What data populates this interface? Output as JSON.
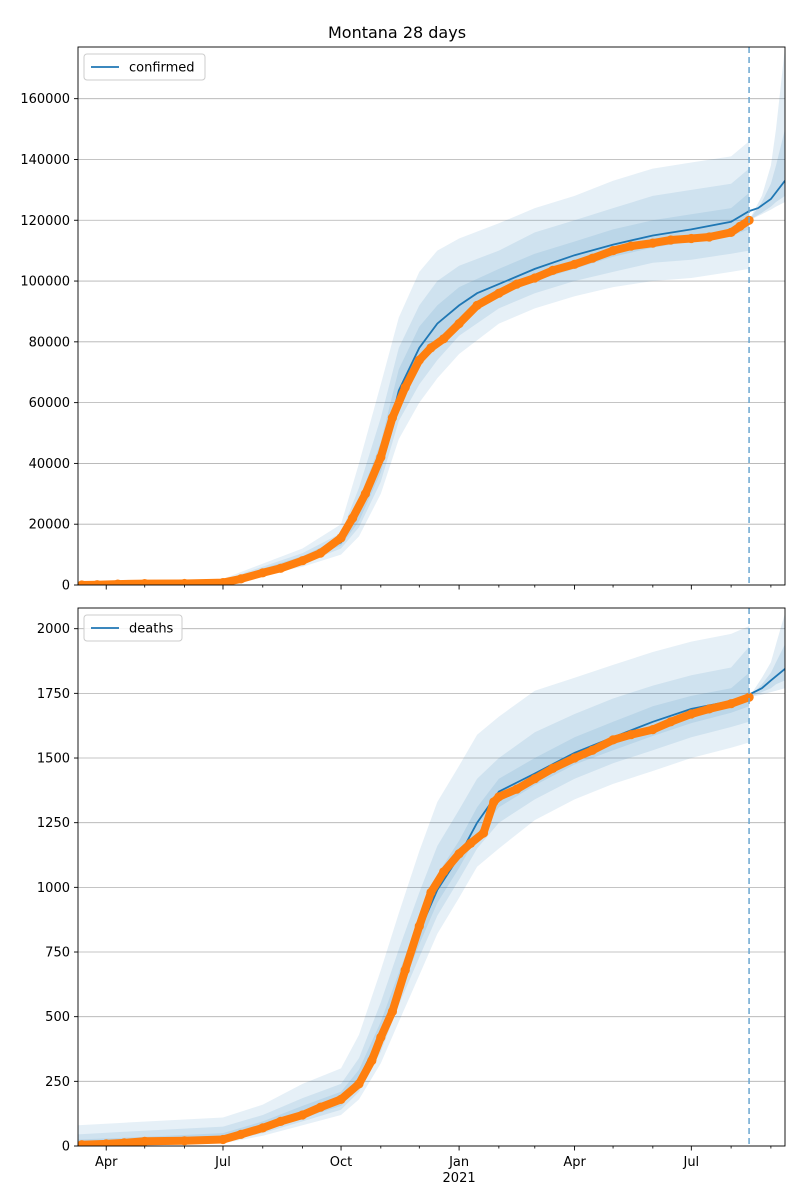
{
  "figure": {
    "title": "Montana 28 days"
  },
  "colors": {
    "model": "#1f77b4",
    "observed": "#ff7f0e",
    "grid": "#b0b0b0",
    "cutoff": "#6aa6d0"
  },
  "x_ticks": {
    "major": [
      {
        "date": "2020-04-01",
        "label": "Apr"
      },
      {
        "date": "2020-07-01",
        "label": "Jul"
      },
      {
        "date": "2020-10-01",
        "label": "Oct"
      },
      {
        "date": "2021-01-01",
        "label": "Jan"
      },
      {
        "date": "2021-04-01",
        "label": "Apr"
      },
      {
        "date": "2021-07-01",
        "label": "Jul"
      }
    ],
    "year_label": {
      "date": "2021-01-01",
      "label": "2021"
    },
    "minor": [
      "2020-03-01",
      "2020-05-01",
      "2020-06-01",
      "2020-08-01",
      "2020-09-01",
      "2020-11-01",
      "2020-12-01",
      "2021-02-01",
      "2021-03-01",
      "2021-05-01",
      "2021-06-01",
      "2021-08-01",
      "2021-09-01"
    ]
  },
  "chart_data": [
    {
      "type": "line",
      "legend": "confirmed",
      "legend_position": "top-left",
      "grid": "horizontal",
      "xlim": [
        "2020-03-10",
        "2021-09-12"
      ],
      "ylim": [
        0,
        177000
      ],
      "y_ticks": [
        0,
        20000,
        40000,
        60000,
        80000,
        100000,
        120000,
        140000,
        160000
      ],
      "forecast_start": "2021-08-15",
      "model": {
        "name": "confirmed",
        "x": [
          "2020-03-10",
          "2020-05-01",
          "2020-07-01",
          "2020-08-01",
          "2020-09-01",
          "2020-10-01",
          "2020-10-15",
          "2020-11-01",
          "2020-11-15",
          "2020-12-01",
          "2020-12-15",
          "2021-01-01",
          "2021-01-15",
          "2021-02-01",
          "2021-03-01",
          "2021-04-01",
          "2021-05-01",
          "2021-06-01",
          "2021-07-01",
          "2021-08-01",
          "2021-08-15",
          "2021-08-22",
          "2021-09-01",
          "2021-09-12"
        ],
        "y": [
          0,
          300,
          1000,
          4000,
          8500,
          14000,
          24000,
          40000,
          64000,
          78000,
          86000,
          92000,
          96000,
          99000,
          104000,
          108500,
          112000,
          115000,
          117000,
          119500,
          123000,
          124000,
          127000,
          133000
        ]
      },
      "bands": [
        {
          "x": [
            "2020-03-10",
            "2020-07-01",
            "2020-09-01",
            "2020-10-01",
            "2020-10-15",
            "2020-11-01",
            "2020-11-15",
            "2020-12-01",
            "2020-12-15",
            "2021-01-01",
            "2021-02-01",
            "2021-03-01",
            "2021-04-01",
            "2021-05-01",
            "2021-06-01",
            "2021-07-01",
            "2021-08-01",
            "2021-08-15"
          ],
          "lower": [
            0,
            500,
            6000,
            10000,
            16000,
            30000,
            48000,
            60000,
            68000,
            76000,
            86000,
            91000,
            95000,
            98000,
            100000,
            101000,
            103000,
            104000
          ],
          "upper": [
            0,
            2000,
            12000,
            20000,
            40000,
            66000,
            88000,
            103000,
            110000,
            114000,
            119000,
            124000,
            128000,
            133000,
            137000,
            139000,
            141000,
            146000
          ]
        },
        {
          "x": [
            "2020-03-10",
            "2020-07-01",
            "2020-09-01",
            "2020-10-01",
            "2020-10-15",
            "2020-11-01",
            "2020-11-15",
            "2020-12-01",
            "2020-12-15",
            "2021-01-01",
            "2021-02-01",
            "2021-03-01",
            "2021-04-01",
            "2021-05-01",
            "2021-06-01",
            "2021-07-01",
            "2021-08-01",
            "2021-08-15"
          ],
          "lower": [
            0,
            700,
            7000,
            12000,
            19000,
            34000,
            54000,
            66000,
            74000,
            82000,
            91000,
            96000,
            100000,
            103000,
            106000,
            107000,
            109000,
            110000
          ],
          "upper": [
            0,
            1600,
            10500,
            17000,
            32000,
            55000,
            78000,
            92000,
            100000,
            105000,
            110000,
            116000,
            120000,
            124000,
            128000,
            130000,
            132000,
            137000
          ]
        },
        {
          "x": [
            "2020-03-10",
            "2020-07-01",
            "2020-09-01",
            "2020-10-01",
            "2020-10-15",
            "2020-11-01",
            "2020-11-15",
            "2020-12-01",
            "2020-12-15",
            "2021-01-01",
            "2021-02-01",
            "2021-03-01",
            "2021-04-01",
            "2021-05-01",
            "2021-06-01",
            "2021-07-01",
            "2021-08-01",
            "2021-08-15"
          ],
          "lower": [
            0,
            850,
            8000,
            13000,
            21000,
            37000,
            58000,
            72000,
            80000,
            87000,
            95000,
            100000,
            104000,
            108000,
            111000,
            113000,
            115000,
            117000
          ],
          "upper": [
            0,
            1300,
            9500,
            15500,
            28000,
            47000,
            71000,
            85000,
            92000,
            98000,
            104000,
            109000,
            113000,
            117000,
            120000,
            122000,
            124000,
            129000
          ]
        }
      ],
      "forecast_bands": [
        {
          "x": [
            "2021-08-15",
            "2021-08-25",
            "2021-09-01",
            "2021-09-05",
            "2021-09-12"
          ],
          "lower": [
            120000,
            122000,
            123500,
            124500,
            126000
          ],
          "upper": [
            120000,
            128000,
            138000,
            150000,
            177000
          ]
        },
        {
          "x": [
            "2021-08-15",
            "2021-08-25",
            "2021-09-01",
            "2021-09-05",
            "2021-09-12"
          ],
          "lower": [
            120000,
            122500,
            124500,
            126000,
            128000
          ],
          "upper": [
            120000,
            126000,
            132000,
            138000,
            150000
          ]
        }
      ],
      "observed": {
        "name": "confirmed",
        "x": [
          "2020-03-13",
          "2020-03-25",
          "2020-04-10",
          "2020-05-01",
          "2020-06-01",
          "2020-07-01",
          "2020-07-15",
          "2020-08-01",
          "2020-08-15",
          "2020-09-01",
          "2020-09-15",
          "2020-10-01",
          "2020-10-10",
          "2020-10-20",
          "2020-11-01",
          "2020-11-10",
          "2020-11-20",
          "2020-12-01",
          "2020-12-10",
          "2020-12-20",
          "2021-01-01",
          "2021-01-15",
          "2021-02-01",
          "2021-02-15",
          "2021-03-01",
          "2021-03-15",
          "2021-04-01",
          "2021-04-15",
          "2021-05-01",
          "2021-05-15",
          "2021-06-01",
          "2021-06-15",
          "2021-07-01",
          "2021-07-15",
          "2021-08-01",
          "2021-08-08",
          "2021-08-15"
        ],
        "y": [
          0,
          100,
          300,
          450,
          500,
          800,
          2000,
          4000,
          5500,
          8000,
          10500,
          15500,
          22000,
          30000,
          42000,
          55000,
          65000,
          74000,
          78000,
          81000,
          86000,
          92000,
          96000,
          99000,
          101000,
          103500,
          105500,
          107500,
          110000,
          111500,
          112500,
          113500,
          114000,
          114500,
          116000,
          118000,
          120000
        ]
      }
    },
    {
      "type": "line",
      "legend": "deaths",
      "legend_position": "top-left",
      "grid": "horizontal",
      "xlim": [
        "2020-03-10",
        "2021-09-12"
      ],
      "ylim": [
        0,
        2080
      ],
      "y_ticks": [
        0,
        250,
        500,
        750,
        1000,
        1250,
        1500,
        1750,
        2000
      ],
      "forecast_start": "2021-08-15",
      "model": {
        "name": "deaths",
        "x": [
          "2020-03-10",
          "2020-06-01",
          "2020-07-01",
          "2020-08-01",
          "2020-09-01",
          "2020-10-01",
          "2020-10-15",
          "2020-11-01",
          "2020-11-15",
          "2020-12-01",
          "2020-12-15",
          "2021-01-01",
          "2021-01-15",
          "2021-02-01",
          "2021-03-01",
          "2021-04-01",
          "2021-05-01",
          "2021-06-01",
          "2021-07-01",
          "2021-08-01",
          "2021-08-15",
          "2021-08-25",
          "2021-09-01",
          "2021-09-12"
        ],
        "y": [
          5,
          18,
          30,
          70,
          125,
          180,
          260,
          430,
          620,
          830,
          990,
          1120,
          1250,
          1370,
          1440,
          1520,
          1580,
          1640,
          1690,
          1720,
          1745,
          1770,
          1800,
          1845
        ]
      },
      "bands": [
        {
          "x": [
            "2020-03-10",
            "2020-04-15",
            "2020-07-01",
            "2020-08-01",
            "2020-09-01",
            "2020-10-01",
            "2020-10-15",
            "2020-11-01",
            "2020-11-15",
            "2020-12-01",
            "2020-12-15",
            "2021-01-01",
            "2021-01-15",
            "2021-02-01",
            "2021-03-01",
            "2021-04-01",
            "2021-05-01",
            "2021-06-01",
            "2021-07-01",
            "2021-08-01",
            "2021-08-15"
          ],
          "lower": [
            0,
            0,
            10,
            40,
            80,
            120,
            180,
            320,
            480,
            660,
            820,
            960,
            1080,
            1150,
            1260,
            1340,
            1400,
            1450,
            1500,
            1540,
            1560
          ],
          "upper": [
            80,
            90,
            110,
            160,
            240,
            300,
            430,
            680,
            900,
            1140,
            1330,
            1470,
            1590,
            1660,
            1760,
            1810,
            1860,
            1910,
            1950,
            1980,
            2010
          ]
        },
        {
          "x": [
            "2020-03-10",
            "2020-04-15",
            "2020-07-01",
            "2020-08-01",
            "2020-09-01",
            "2020-10-01",
            "2020-10-15",
            "2020-11-01",
            "2020-11-15",
            "2020-12-01",
            "2020-12-15",
            "2021-01-01",
            "2021-01-15",
            "2021-02-01",
            "2021-03-01",
            "2021-04-01",
            "2021-05-01",
            "2021-06-01",
            "2021-07-01",
            "2021-08-01",
            "2021-08-15"
          ],
          "lower": [
            0,
            5,
            15,
            50,
            95,
            140,
            210,
            365,
            545,
            730,
            890,
            1030,
            1150,
            1250,
            1340,
            1420,
            1480,
            1530,
            1580,
            1620,
            1640
          ],
          "upper": [
            45,
            55,
            75,
            120,
            185,
            240,
            340,
            555,
            760,
            980,
            1160,
            1300,
            1420,
            1500,
            1600,
            1670,
            1730,
            1780,
            1820,
            1850,
            1930
          ]
        },
        {
          "x": [
            "2020-03-10",
            "2020-04-15",
            "2020-07-01",
            "2020-08-01",
            "2020-09-01",
            "2020-10-01",
            "2020-10-15",
            "2020-11-01",
            "2020-11-15",
            "2020-12-01",
            "2020-12-15",
            "2021-01-01",
            "2021-01-15",
            "2021-02-01",
            "2021-03-01",
            "2021-04-01",
            "2021-05-01",
            "2021-06-01",
            "2021-07-01",
            "2021-08-01",
            "2021-08-15"
          ],
          "lower": [
            0,
            8,
            22,
            60,
            108,
            155,
            232,
            395,
            580,
            780,
            940,
            1075,
            1200,
            1310,
            1395,
            1475,
            1530,
            1585,
            1635,
            1675,
            1700
          ],
          "upper": [
            25,
            32,
            50,
            95,
            155,
            210,
            295,
            480,
            670,
            880,
            1050,
            1180,
            1310,
            1420,
            1500,
            1580,
            1640,
            1700,
            1740,
            1770,
            1830
          ]
        }
      ],
      "forecast_bands": [
        {
          "x": [
            "2021-08-15",
            "2021-08-25",
            "2021-09-01",
            "2021-09-05",
            "2021-09-12"
          ],
          "lower": [
            1735,
            1745,
            1755,
            1760,
            1770
          ],
          "upper": [
            1735,
            1810,
            1870,
            1940,
            2060
          ]
        },
        {
          "x": [
            "2021-08-15",
            "2021-08-25",
            "2021-09-01",
            "2021-09-05",
            "2021-09-12"
          ],
          "lower": [
            1735,
            1755,
            1770,
            1785,
            1800
          ],
          "upper": [
            1735,
            1785,
            1830,
            1870,
            1940
          ]
        }
      ],
      "observed": {
        "name": "deaths",
        "x": [
          "2020-03-13",
          "2020-04-01",
          "2020-04-15",
          "2020-05-01",
          "2020-06-01",
          "2020-07-01",
          "2020-07-15",
          "2020-08-01",
          "2020-08-15",
          "2020-09-01",
          "2020-09-15",
          "2020-10-01",
          "2020-10-15",
          "2020-10-25",
          "2020-11-01",
          "2020-11-10",
          "2020-11-20",
          "2020-12-01",
          "2020-12-10",
          "2020-12-20",
          "2021-01-01",
          "2021-01-10",
          "2021-01-20",
          "2021-01-28",
          "2021-02-01",
          "2021-02-15",
          "2021-03-01",
          "2021-03-15",
          "2021-04-01",
          "2021-04-15",
          "2021-05-01",
          "2021-05-15",
          "2021-06-01",
          "2021-06-15",
          "2021-07-01",
          "2021-07-15",
          "2021-08-01",
          "2021-08-15"
        ],
        "y": [
          5,
          8,
          12,
          18,
          20,
          25,
          45,
          70,
          95,
          120,
          150,
          180,
          240,
          330,
          420,
          520,
          680,
          850,
          980,
          1060,
          1130,
          1170,
          1210,
          1330,
          1350,
          1380,
          1420,
          1460,
          1500,
          1530,
          1570,
          1590,
          1610,
          1640,
          1670,
          1690,
          1710,
          1735
        ]
      }
    }
  ]
}
